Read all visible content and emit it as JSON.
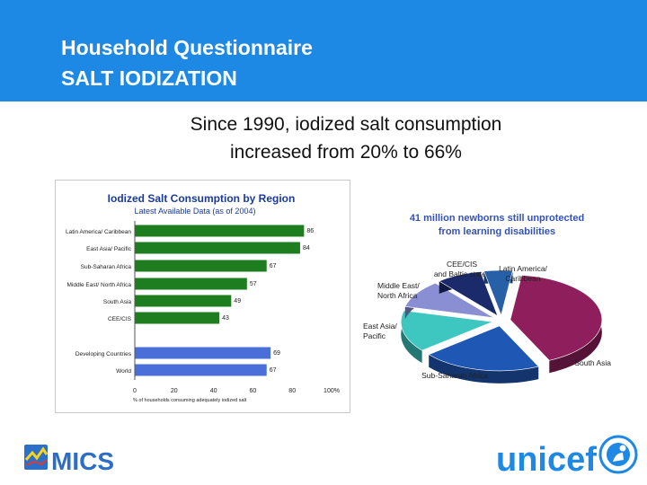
{
  "header": {
    "line1": "Household Questionnaire",
    "line2": "SALT IODIZATION"
  },
  "subtitle": {
    "line1": "Since 1990, iodized salt consumption",
    "line2": "increased from 20% to 66%"
  },
  "colors": {
    "header_bg": "#1e88e5",
    "bar_green": "#1e7d1e",
    "bar_blue": "#4a6fd8",
    "title_blue": "#1a3a9a"
  },
  "chart_data": [
    {
      "type": "bar",
      "orientation": "horizontal",
      "title": "Iodized Salt Consumption by Region",
      "subtitle": "Latest Available Data (as of 2004)",
      "xlabel": "% of households consuming adequately iodized salt",
      "xlim": [
        0,
        100
      ],
      "xticks": [
        "0",
        "20",
        "40",
        "60",
        "80",
        "100%"
      ],
      "categories": [
        "Latin America/ Caribbean",
        "East Asia/ Pacific",
        "Sub-Saharan Africa",
        "Middle East/ North Africa",
        "South Asia",
        "CEE/CIS",
        "Developing Countries",
        "World"
      ],
      "values": [
        86,
        84,
        67,
        57,
        49,
        43,
        69,
        67
      ],
      "groups": [
        "region",
        "region",
        "region",
        "region",
        "region",
        "region",
        "aggregate",
        "aggregate"
      ],
      "grid": false
    },
    {
      "type": "pie",
      "title": "41 million newborns still unprotected from learning disabilities",
      "style": "3d-exploded",
      "slices": [
        {
          "label": "South Asia",
          "value": 41,
          "color": "#8e1f5c"
        },
        {
          "label": "Sub-Saharan Africa",
          "value": 21,
          "color": "#1f57b4"
        },
        {
          "label": "East Asia/ Pacific",
          "value": 15,
          "color": "#3ec6c0"
        },
        {
          "label": "Middle East/ North Africa",
          "value": 10,
          "color": "#8a8fd4"
        },
        {
          "label": "CEE/CIS and Baltic states",
          "value": 8,
          "color": "#1b2a6b"
        },
        {
          "label": "Latin America/ Caribbean",
          "value": 5,
          "color": "#2860a8"
        }
      ]
    }
  ],
  "footer": {
    "mics_label": "MICS",
    "unicef_label": "unicef"
  }
}
